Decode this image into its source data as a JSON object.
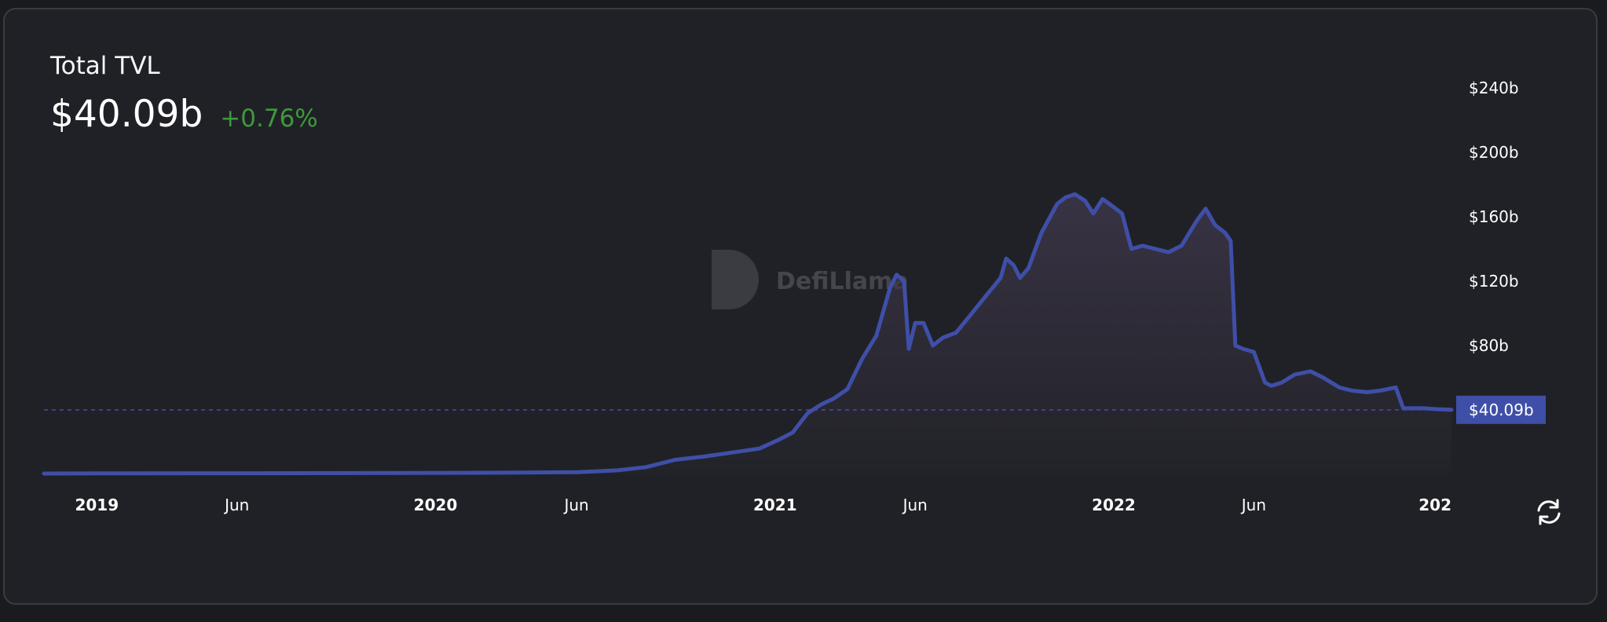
{
  "header": {
    "title": "Total TVL",
    "value": "$40.09b",
    "change": "+0.76%",
    "change_color": "#3d9a3a"
  },
  "watermark": {
    "text": "DefiLlama"
  },
  "controls": {
    "refresh_icon": "refresh-icon"
  },
  "colors": {
    "line": "#3f4fa8",
    "area_top": "#3b3547",
    "price_label_bg": "#3f4fa8",
    "axis_text": "#ffffff"
  },
  "chart_data": {
    "type": "area",
    "series": [
      {
        "x": [
          "2018-11-05",
          "2019-01-01",
          "2019-06-01",
          "2019-12-01",
          "2020-02-15",
          "2020-06-01",
          "2020-07-15",
          "2020-08-15",
          "2020-09-15",
          "2020-10-15",
          "2020-11-15",
          "2020-12-15",
          "2021-01-05",
          "2021-01-20",
          "2021-02-05",
          "2021-02-20",
          "2021-03-05",
          "2021-03-20",
          "2021-04-05",
          "2021-04-20",
          "2021-05-05",
          "2021-05-12",
          "2021-05-20",
          "2021-05-25",
          "2021-06-01",
          "2021-06-10",
          "2021-06-20",
          "2021-07-01",
          "2021-07-15",
          "2021-08-01",
          "2021-08-15",
          "2021-09-01",
          "2021-09-07",
          "2021-09-15",
          "2021-09-22",
          "2021-10-01",
          "2021-10-15",
          "2021-11-01",
          "2021-11-10",
          "2021-11-20",
          "2021-12-01",
          "2021-12-10",
          "2021-12-20",
          "2022-01-01",
          "2022-01-10",
          "2022-01-20",
          "2022-02-01",
          "2022-02-15",
          "2022-03-01",
          "2022-03-15",
          "2022-04-01",
          "2022-04-10",
          "2022-04-20",
          "2022-05-01",
          "2022-05-07",
          "2022-05-12",
          "2022-05-20",
          "2022-06-01",
          "2022-06-13",
          "2022-06-20",
          "2022-07-01",
          "2022-07-15",
          "2022-08-01",
          "2022-08-15",
          "2022-09-01",
          "2022-09-15",
          "2022-10-01",
          "2022-10-15",
          "2022-11-01",
          "2022-11-09",
          "2022-11-20",
          "2022-12-01",
          "2022-12-15",
          "2022-12-31"
        ],
        "values": [
          0.5,
          0.6,
          0.7,
          0.9,
          1.0,
          1.3,
          2.5,
          4.5,
          9.0,
          11.0,
          13.5,
          16.0,
          21.5,
          26.0,
          38.0,
          43.5,
          47.0,
          53.0,
          72.0,
          86.0,
          116.0,
          124.0,
          120.0,
          78.0,
          94.0,
          94.0,
          80.0,
          85.0,
          88.0,
          100.0,
          110.0,
          122.0,
          134.0,
          130.0,
          122.0,
          128.0,
          150.0,
          168.0,
          172.0,
          174.0,
          170.0,
          162.0,
          171.0,
          166.0,
          162.0,
          140.0,
          142.0,
          140.0,
          138.0,
          142.0,
          158.0,
          165.0,
          155.0,
          150.0,
          145.0,
          80.0,
          78.0,
          76.0,
          57.0,
          55.0,
          57.0,
          62.0,
          64.0,
          60.0,
          54.0,
          52.0,
          51.0,
          52.0,
          54.0,
          41.0,
          41.0,
          41.0,
          40.5,
          40.09
        ]
      }
    ],
    "x_ticks": [
      "2019",
      "Jun",
      "2020",
      "Jun",
      "2021",
      "Jun",
      "2022",
      "Jun",
      "202"
    ],
    "y_ticks": [
      "$240b",
      "$200b",
      "$160b",
      "$120b",
      "$80b"
    ],
    "y_range": [
      0,
      240
    ],
    "current_value": 40.09,
    "current_value_label": "$40.09b",
    "grid": false
  }
}
